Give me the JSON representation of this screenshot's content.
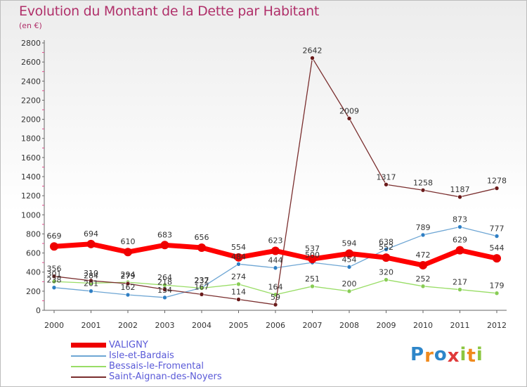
{
  "title": "Evolution du Montant de la Dette par Habitant",
  "unit": "(en €)",
  "brand": {
    "text": "Proxiti",
    "letters": [
      {
        "char": "P",
        "color": "#2e86c9"
      },
      {
        "char": "r",
        "color": "#f08a1c"
      },
      {
        "char": "o",
        "color": "#2e86c9"
      },
      {
        "char": "x",
        "color": "#e03a3a"
      },
      {
        "char": "i",
        "color": "#8cc63f"
      },
      {
        "char": "t",
        "color": "#f08a1c"
      },
      {
        "char": "i",
        "color": "#8cc63f"
      }
    ]
  },
  "chart_data": {
    "type": "line",
    "title": "Evolution du Montant de la Dette par Habitant",
    "ylabel": "(en €)",
    "xlabel": "",
    "ylim": [
      0,
      2800
    ],
    "yticks": [
      0,
      200,
      400,
      600,
      800,
      1000,
      1200,
      1400,
      1600,
      1800,
      2000,
      2200,
      2400,
      2600,
      2800
    ],
    "x": [
      "2000",
      "2001",
      "2002",
      "2003",
      "2004",
      "2005",
      "2006",
      "2007",
      "2008",
      "2009",
      "2010",
      "2011",
      "2012"
    ],
    "grid": false,
    "legend_position": "bottom-left",
    "series": [
      {
        "name": "VALIGNY",
        "color": "#ff0000",
        "marker": "#ee0000",
        "width": "thick",
        "values": [
          669,
          694,
          610,
          683,
          656,
          554,
          623,
          537,
          594,
          552,
          472,
          629,
          544
        ],
        "labels": [
          "669",
          "694",
          "610",
          "683",
          "656",
          "554",
          "623",
          "537",
          "594",
          "552",
          "472",
          "629",
          "544"
        ]
      },
      {
        "name": "Isle-et-Bardais",
        "color": "#6ea6d4",
        "marker": "#2f7fc4",
        "width": "thin",
        "values": [
          238,
          201,
          162,
          134,
          237,
          484,
          444,
          500,
          454,
          638,
          789,
          873,
          777
        ],
        "labels": [
          "238",
          "201",
          "162",
          "134",
          "237",
          "484",
          "444",
          "500",
          "454",
          "638",
          "789",
          "873",
          "777"
        ]
      },
      {
        "name": "Bessais-le-Fromental",
        "color": "#99dd66",
        "marker": "#88cc55",
        "width": "thin",
        "values": [
          301,
          284,
          294,
          264,
          232,
          274,
          164,
          251,
          200,
          320,
          252,
          217,
          179
        ],
        "labels": [
          "301",
          "284",
          "294",
          "264",
          "232",
          "274",
          "164",
          "251",
          "200",
          "320",
          "252",
          "217",
          "179"
        ]
      },
      {
        "name": "Saint-Aignan-des-Noyers",
        "color": "#7a2e2e",
        "marker": "#6a1a1a",
        "width": "thin",
        "values": [
          356,
          310,
          279,
          218,
          167,
          114,
          59,
          2642,
          2009,
          1317,
          1258,
          1187,
          1278
        ],
        "labels": [
          "356",
          "310",
          "279",
          "218",
          "167",
          "114",
          "59",
          "2642",
          "2009",
          "1317",
          "1258",
          "1187",
          "1278"
        ]
      }
    ]
  }
}
